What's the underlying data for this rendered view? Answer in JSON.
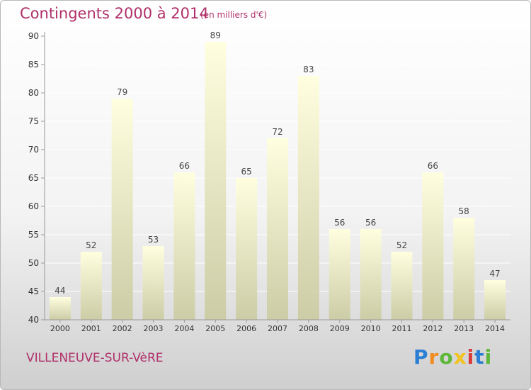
{
  "chart_data": {
    "type": "bar",
    "title": "Contingents 2000 à 2014",
    "subtitle": "(en milliers d'€)",
    "categories": [
      "2000",
      "2001",
      "2002",
      "2003",
      "2004",
      "2005",
      "2006",
      "2007",
      "2008",
      "2009",
      "2010",
      "2011",
      "2012",
      "2013",
      "2014"
    ],
    "values": [
      44,
      52,
      79,
      53,
      66,
      89,
      65,
      72,
      83,
      56,
      56,
      52,
      66,
      58,
      47
    ],
    "ylim": [
      40,
      90
    ],
    "yticks": [
      40,
      45,
      50,
      55,
      60,
      65,
      70,
      75,
      80,
      85,
      90
    ],
    "grid": true,
    "legend": "none",
    "xlabel": "",
    "ylabel": ""
  },
  "footer": {
    "commune": "VILLENEUVE-SUR-VèRE",
    "brand": "Proxiti",
    "brand_letters": [
      "P",
      "r",
      "o",
      "x",
      "i",
      "t",
      "i"
    ],
    "brand_colors": [
      "#2a7fd4",
      "#f28c1e",
      "#5db83a",
      "#f2c21e",
      "#d83a3a",
      "#2a7fd4",
      "#5db83a"
    ]
  },
  "colors": {
    "title": "#b0306a",
    "bar_top": "#ffffe0",
    "bar_bottom": "#cccca6",
    "grid": "#ffffff",
    "axis": "#999999"
  }
}
